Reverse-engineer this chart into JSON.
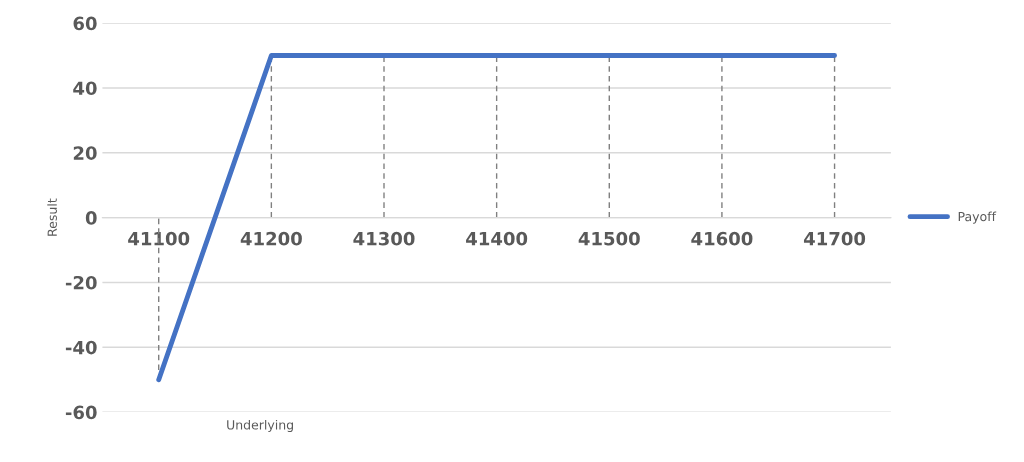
{
  "chart_data": {
    "type": "line",
    "ylabel": "Result",
    "xlabel": "Underlying",
    "categories": [
      "41100",
      "41200",
      "41300",
      "41400",
      "41500",
      "41600",
      "41700"
    ],
    "series": [
      {
        "name": "Payoff",
        "color": "#4472c4",
        "values": [
          -50,
          50,
          50,
          50,
          50,
          50,
          50
        ],
        "errors": [
          [
            -50,
            0
          ],
          [
            0,
            50
          ],
          [
            0,
            50
          ],
          [
            0,
            50
          ],
          [
            0,
            50
          ],
          [
            0,
            50
          ],
          [
            0,
            50
          ]
        ]
      }
    ],
    "ylim": [
      -60,
      60
    ],
    "yticks": [
      -60,
      -40,
      -20,
      0,
      20,
      40,
      60
    ],
    "grid": "y",
    "legend": "right",
    "marker": "none",
    "line_style": "solid"
  }
}
